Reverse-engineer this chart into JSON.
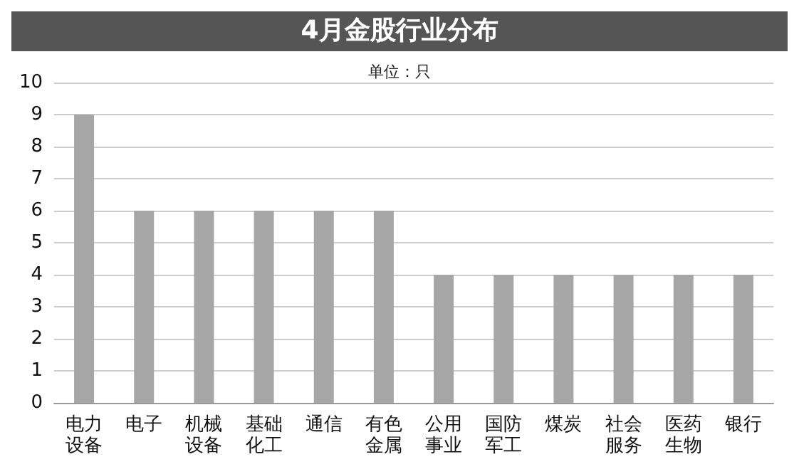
{
  "chart_data": {
    "type": "bar",
    "title": "4月金股行业分布",
    "subtitle": "单位：只",
    "categories": [
      "电力设备",
      "电子",
      "机械设备",
      "基础化工",
      "通信",
      "有色金属",
      "公用事业",
      "国防军工",
      "煤炭",
      "社会服务",
      "医药生物",
      "银行"
    ],
    "values": [
      9,
      6,
      6,
      6,
      6,
      6,
      4,
      4,
      4,
      4,
      4,
      4
    ],
    "color": "#a6a6a6",
    "ylim": [
      0,
      10
    ],
    "yticks": [
      0,
      1,
      2,
      3,
      4,
      5,
      6,
      7,
      8,
      9,
      10
    ],
    "grid": "y"
  }
}
